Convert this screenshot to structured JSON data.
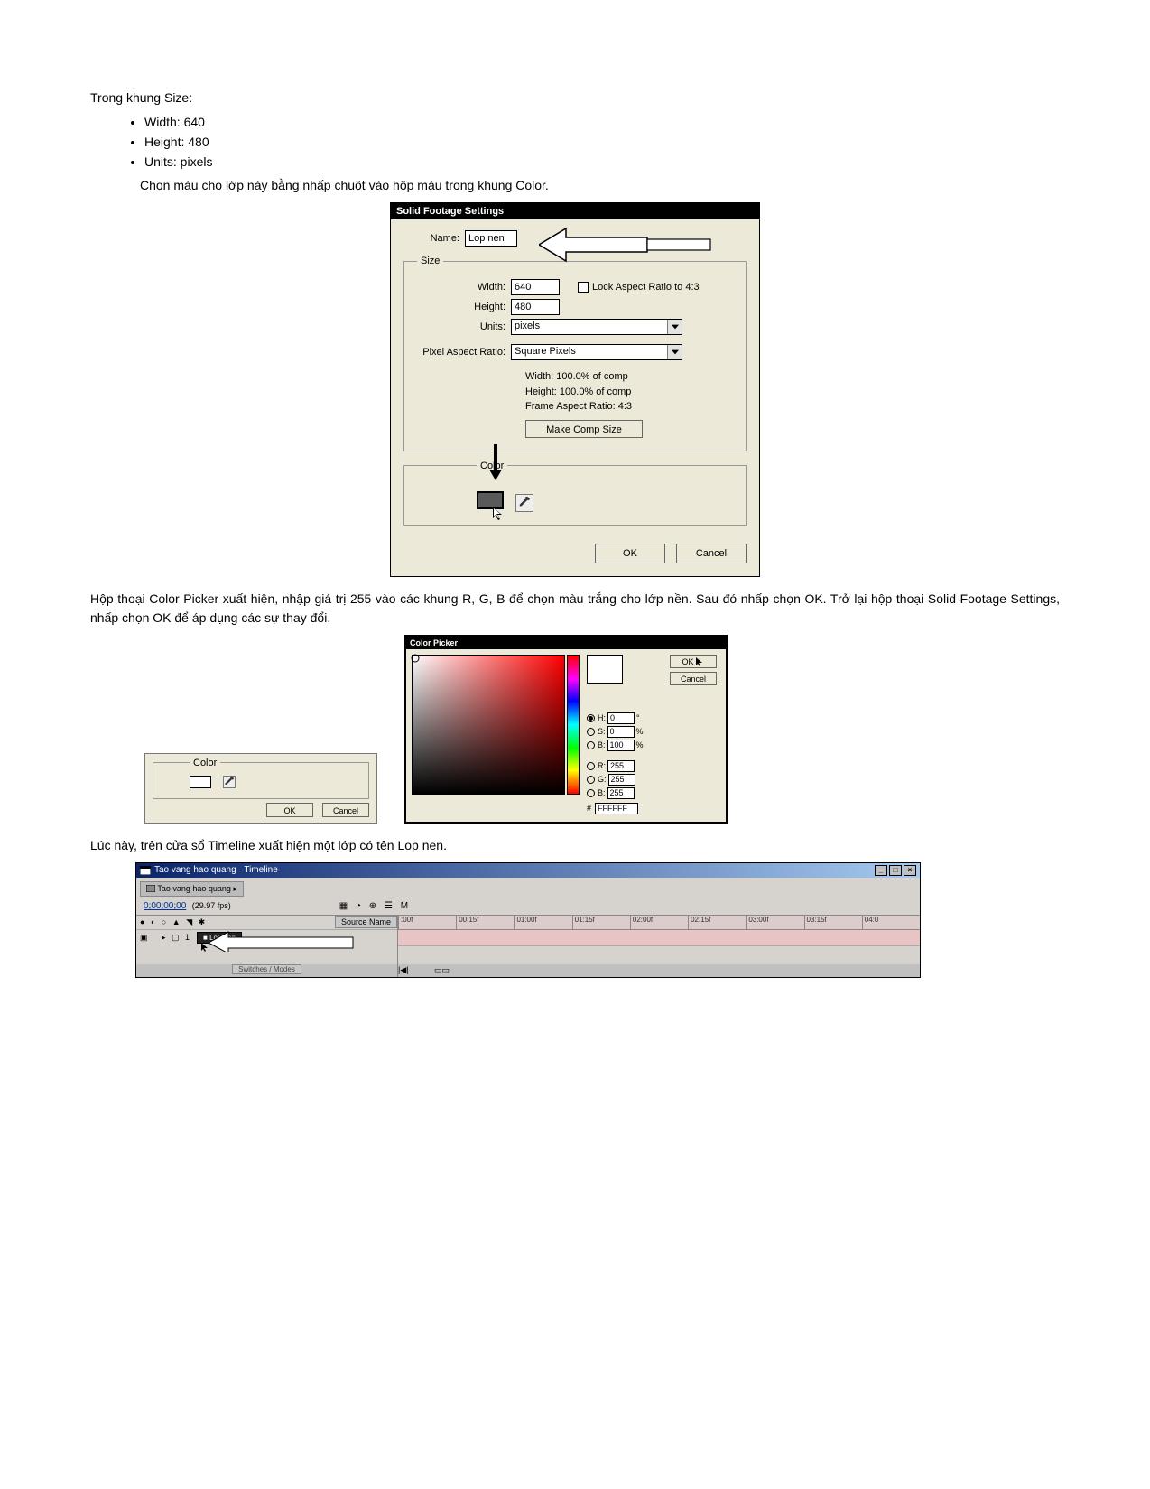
{
  "text": {
    "l1": "Trong khung Size:",
    "b1": "Width: 640",
    "b2": "Height: 480",
    "b3": "Units: pixels",
    "l2": "Chọn màu cho lớp này bằng nhấp chuột vào hộp màu trong khung Color.",
    "p2": "Hộp thoại Color Picker xuất hiện, nhập giá trị 255 vào các khung R, G, B để chọn màu trắng cho lớp nền. Sau đó nhấp chọn OK. Trở lại hộp thoại Solid Footage Settings, nhấp chọn OK để áp dụng các sự thay đổi.",
    "p3": "Lúc này, trên cửa sổ Timeline xuất hiện một lớp có tên Lop nen."
  },
  "sfs": {
    "title": "Solid Footage Settings",
    "name_lbl": "Name:",
    "name_val": "Lop nen",
    "size_legend": "Size",
    "width_lbl": "Width:",
    "width_val": "640",
    "height_lbl": "Height:",
    "height_val": "480",
    "units_lbl": "Units:",
    "units_val": "pixels",
    "par_lbl": "Pixel Aspect Ratio:",
    "par_val": "Square Pixels",
    "lock_lbl": "Lock Aspect Ratio to 4:3",
    "info_w": "Width: 100.0% of comp",
    "info_h": "Height: 100.0% of comp",
    "info_f": "Frame Aspect Ratio: 4:3",
    "make_comp": "Make Comp Size",
    "color_legend": "Color",
    "ok": "OK",
    "cancel": "Cancel",
    "swatch_color": "#5a5a5a"
  },
  "mini": {
    "legend": "Color",
    "ok": "OK",
    "cancel": "Cancel"
  },
  "cp": {
    "title": "Color Picker",
    "ok": "OK",
    "cancel": "Cancel",
    "h_lbl": "H:",
    "h_val": "0",
    "h_unit": "°",
    "s_lbl": "S:",
    "s_val": "0",
    "s_unit": "%",
    "bb_lbl": "B:",
    "bb_val": "100",
    "bb_unit": "%",
    "r_lbl": "R:",
    "r_val": "255",
    "g_lbl": "G:",
    "g_val": "255",
    "b_lbl": "B:",
    "b_val": "255",
    "hex_lbl": "#",
    "hex_val": "FFFFFF",
    "hue_gradient": "linear-gradient(to bottom,#ff0000 0%,#ff00ff 17%,#0000ff 33%,#00ffff 50%,#00ff00 67%,#ffff00 83%,#ff0000 100%)",
    "preview_color": "#ffffff"
  },
  "tl": {
    "win_title": "Tao vang hao quang · Timeline",
    "tab": "Tao vang hao quang",
    "time": "0;00;00;00",
    "fps": "(29.97 fps)",
    "src_name": "Source Name",
    "layer": "Lop nen",
    "switches": "Switches / Modes",
    "ticks": [
      ":00f",
      "00:15f",
      "01:00f",
      "01:15f",
      "02:00f",
      "02:15f",
      "03:00f",
      "03:15f",
      "04:0"
    ],
    "ruler_bg": "#dccaca",
    "track_bg": "#e8c4c4"
  }
}
